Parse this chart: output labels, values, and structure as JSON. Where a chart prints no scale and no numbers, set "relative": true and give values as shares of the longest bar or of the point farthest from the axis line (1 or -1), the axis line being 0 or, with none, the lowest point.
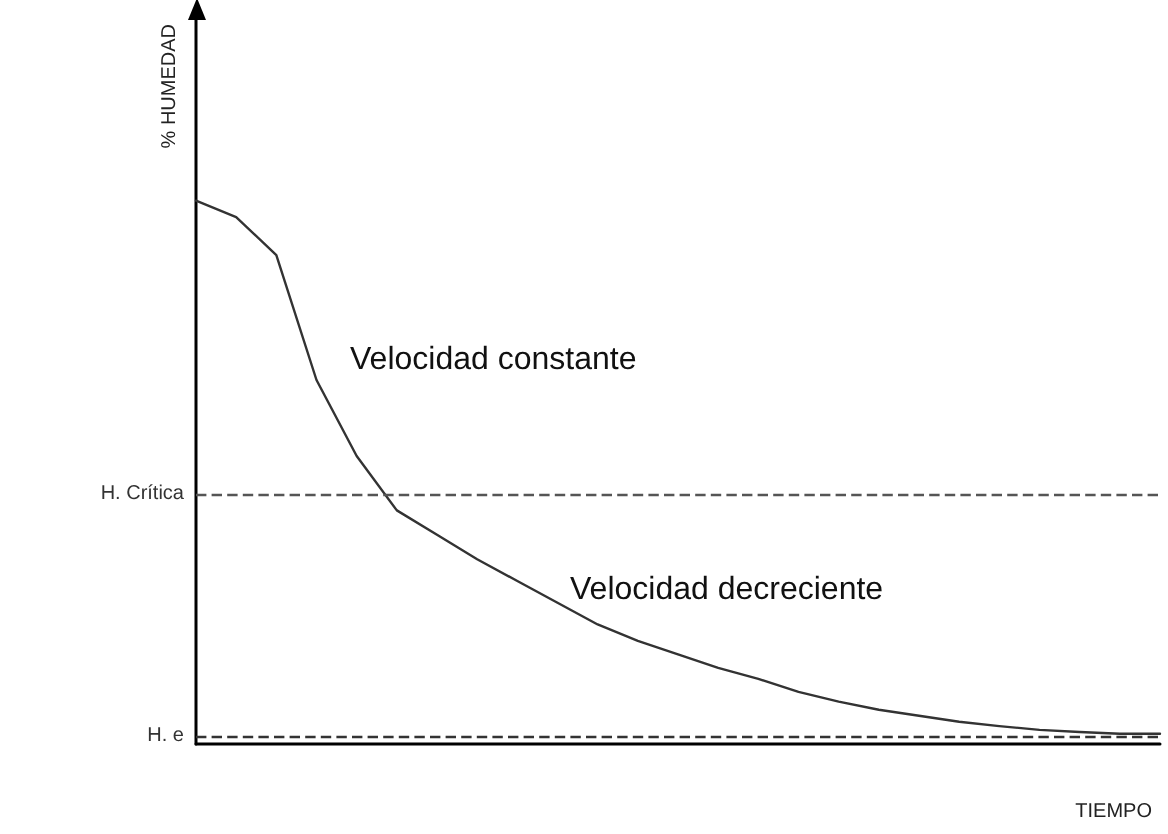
{
  "chart_data": {
    "type": "line",
    "relative": true,
    "xlabel": "TIEMPO",
    "ylabel": "% HUMEDAD",
    "categories": [
      null,
      null,
      null,
      null,
      null,
      null,
      null,
      null,
      null,
      null,
      null,
      null,
      null,
      null,
      null,
      null,
      null,
      null,
      null,
      null,
      null,
      null,
      null,
      null,
      null
    ],
    "series": [
      {
        "color": "#333333",
        "values": [
          1.0,
          0.97,
          0.9,
          0.67,
          0.53,
          0.43,
          0.385,
          0.34,
          0.3,
          0.26,
          0.22,
          0.19,
          0.165,
          0.14,
          0.12,
          0.096,
          0.078,
          0.063,
          0.052,
          0.041,
          0.033,
          0.026,
          0.022,
          0.019,
          0.019
        ]
      }
    ],
    "ref_lines": [
      {
        "axis": "y",
        "value": 0.46,
        "label": "H. Crítica",
        "color": "#555555",
        "line_style": "dashed"
      },
      {
        "axis": "y",
        "value": 0.015,
        "label": "H. e",
        "color": "#333333",
        "line_style": "dashed"
      }
    ],
    "annotations": [
      "Velocidad constante",
      "Velocidad decreciente"
    ],
    "grid": false,
    "marker": "none",
    "line_style": "solid"
  }
}
